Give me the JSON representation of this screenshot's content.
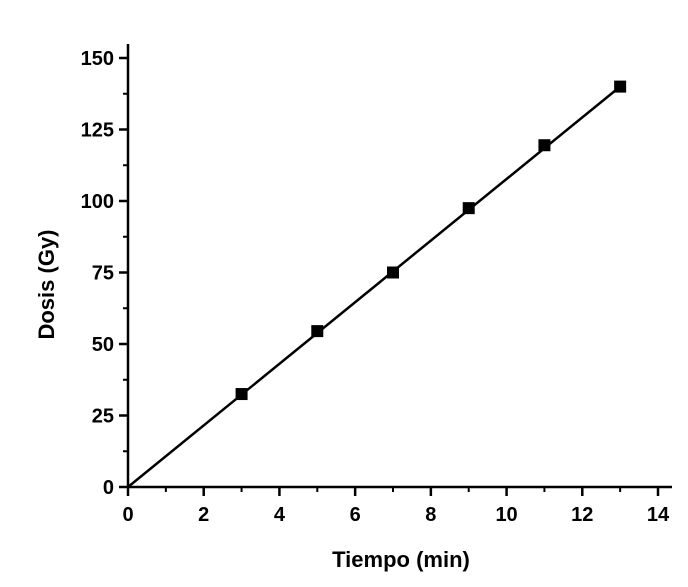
{
  "chart_data": {
    "type": "scatter",
    "title": "",
    "xlabel": "Tiempo (min)",
    "ylabel": "Dosis (Gy)",
    "xlim": [
      0,
      14
    ],
    "ylim": [
      0,
      150
    ],
    "x_ticks": [
      0,
      2,
      4,
      6,
      8,
      10,
      12,
      14
    ],
    "y_ticks": [
      0,
      25,
      50,
      75,
      100,
      125,
      150
    ],
    "x_tick_labels": [
      "0",
      "2",
      "4",
      "6",
      "8",
      "10",
      "12",
      "14"
    ],
    "y_tick_labels": [
      "0",
      "25",
      "50",
      "75",
      "100",
      "125",
      "150"
    ],
    "grid": false,
    "legend": "none",
    "series": [
      {
        "x": [
          3,
          5,
          7,
          9,
          11,
          13
        ],
        "y": [
          32.5,
          54.5,
          75,
          97.5,
          119.5,
          140
        ],
        "marker": "square",
        "color": "#000000"
      }
    ],
    "fit_line": {
      "x": [
        0,
        13
      ],
      "y": [
        0,
        140
      ],
      "color": "#000000"
    }
  }
}
